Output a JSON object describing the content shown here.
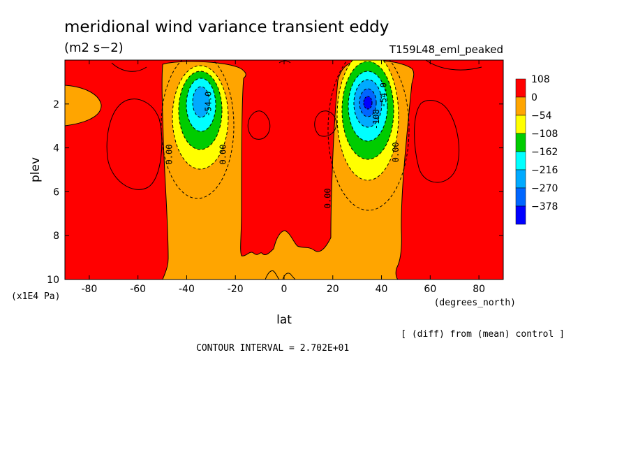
{
  "chart_data": {
    "type": "heatmap",
    "title": "meridional wind variance transient eddy",
    "units": "(m2 s−2)",
    "run_label": "T159L48_eml_peaked",
    "xlabel": "lat",
    "x_units": "(degrees_north)",
    "ylabel": "plev",
    "y_units": "(x1E4 Pa)",
    "xlim": [
      -90,
      90
    ],
    "ylim": [
      10,
      0
    ],
    "x_ticks": [
      -80,
      -60,
      -40,
      -20,
      0,
      20,
      40,
      60,
      80
    ],
    "y_ticks": [
      2,
      4,
      6,
      8,
      10
    ],
    "footer_note": "[ (diff) from (mean) control ]",
    "contour_interval_text": "CONTOUR INTERVAL = 2.702E+01",
    "legend": {
      "position": "right",
      "levels": [
        "108",
        "0",
        "−54",
        "−108",
        "−162",
        "−216",
        "−270",
        "−378"
      ],
      "colors": [
        "#ff0000",
        "#ffa500",
        "#ffff00",
        "#00cc00",
        "#00ffff",
        "#00aaff",
        "#0066ff",
        "#0000ff"
      ]
    },
    "contour_labels": [
      {
        "text": "0.00",
        "lat": -46,
        "plev": 4.3
      },
      {
        "text": "0.00",
        "lat": -24,
        "plev": 4.3
      },
      {
        "text": "0.00",
        "lat": 19,
        "plev": 6.3
      },
      {
        "text": "0.00",
        "lat": 47,
        "plev": 4.2
      },
      {
        "text": "-54.0",
        "lat": -30,
        "plev": 2.0
      },
      {
        "text": "-54.0",
        "lat": 42,
        "plev": 1.6
      },
      {
        "text": "-108",
        "lat": 39,
        "plev": 2.7
      }
    ],
    "features": [
      {
        "name": "southern negative core",
        "lat": -34,
        "plev": 2.0,
        "min_value": -250
      },
      {
        "name": "northern negative core",
        "lat": 34,
        "plev": 2.0,
        "min_value": -378
      }
    ],
    "grid": false
  }
}
